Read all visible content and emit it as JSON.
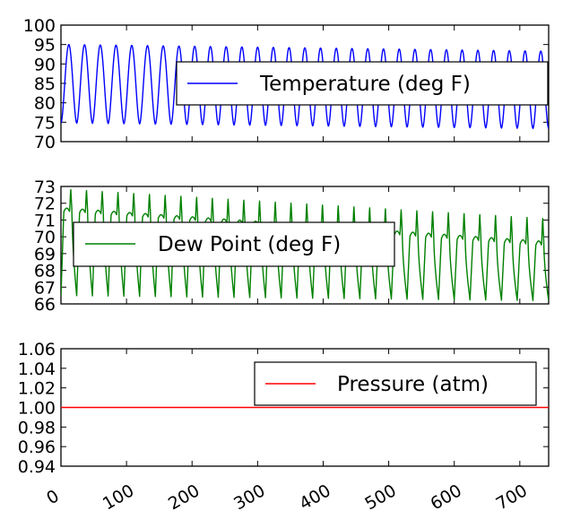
{
  "chart_data": [
    {
      "type": "line",
      "title": "",
      "xlabel": "",
      "ylabel": "",
      "xlim": [
        0,
        744
      ],
      "ylim": [
        70,
        100
      ],
      "yticks": [
        "70",
        "75",
        "80",
        "85",
        "90",
        "95",
        "100"
      ],
      "xtick_labels_shown": false,
      "grid": false,
      "legend_position": "right",
      "series": [
        {
          "name": "Temperature (deg F)",
          "color": "#0000ff",
          "signal": {
            "kind": "daily-cycle",
            "period_hours": 24,
            "min_start": 74.8,
            "min_end": 73.4,
            "max_start": 95.0,
            "max_end": 93.3
          }
        }
      ],
      "legend": {
        "label": "Temperature (deg F)",
        "color": "#0000ff"
      }
    },
    {
      "type": "line",
      "title": "",
      "xlabel": "",
      "ylabel": "",
      "xlim": [
        0,
        744
      ],
      "ylim": [
        66,
        73
      ],
      "yticks": [
        "66",
        "67",
        "68",
        "69",
        "70",
        "71",
        "72",
        "73"
      ],
      "xtick_labels_shown": false,
      "grid": false,
      "legend_position": "center-left",
      "series": [
        {
          "name": "Dew Point (deg F)",
          "color": "#008000",
          "signal": {
            "kind": "daily-cycle",
            "period_hours": 24,
            "min_start": 66.5,
            "min_end": 66.2,
            "max_start": 72.9,
            "max_end": 71.2,
            "plateau_start": 71.5,
            "plateau_end": 69.5
          }
        }
      ],
      "legend": {
        "label": "Dew Point (deg F)",
        "color": "#008000"
      }
    },
    {
      "type": "line",
      "title": "",
      "xlabel": "",
      "ylabel": "",
      "xlim": [
        0,
        744
      ],
      "ylim": [
        0.94,
        1.06
      ],
      "yticks": [
        "0.94",
        "0.96",
        "0.98",
        "1.00",
        "1.02",
        "1.04",
        "1.06"
      ],
      "xticks": [
        "0",
        "100",
        "200",
        "300",
        "400",
        "500",
        "600",
        "700"
      ],
      "grid": false,
      "legend_position": "top-right",
      "series": [
        {
          "name": "Pressure (atm)",
          "color": "#ff0000",
          "x": [
            0,
            744
          ],
          "y": [
            1.0,
            1.0
          ]
        }
      ],
      "legend": {
        "label": "Pressure (atm)",
        "color": "#ff0000"
      }
    }
  ]
}
